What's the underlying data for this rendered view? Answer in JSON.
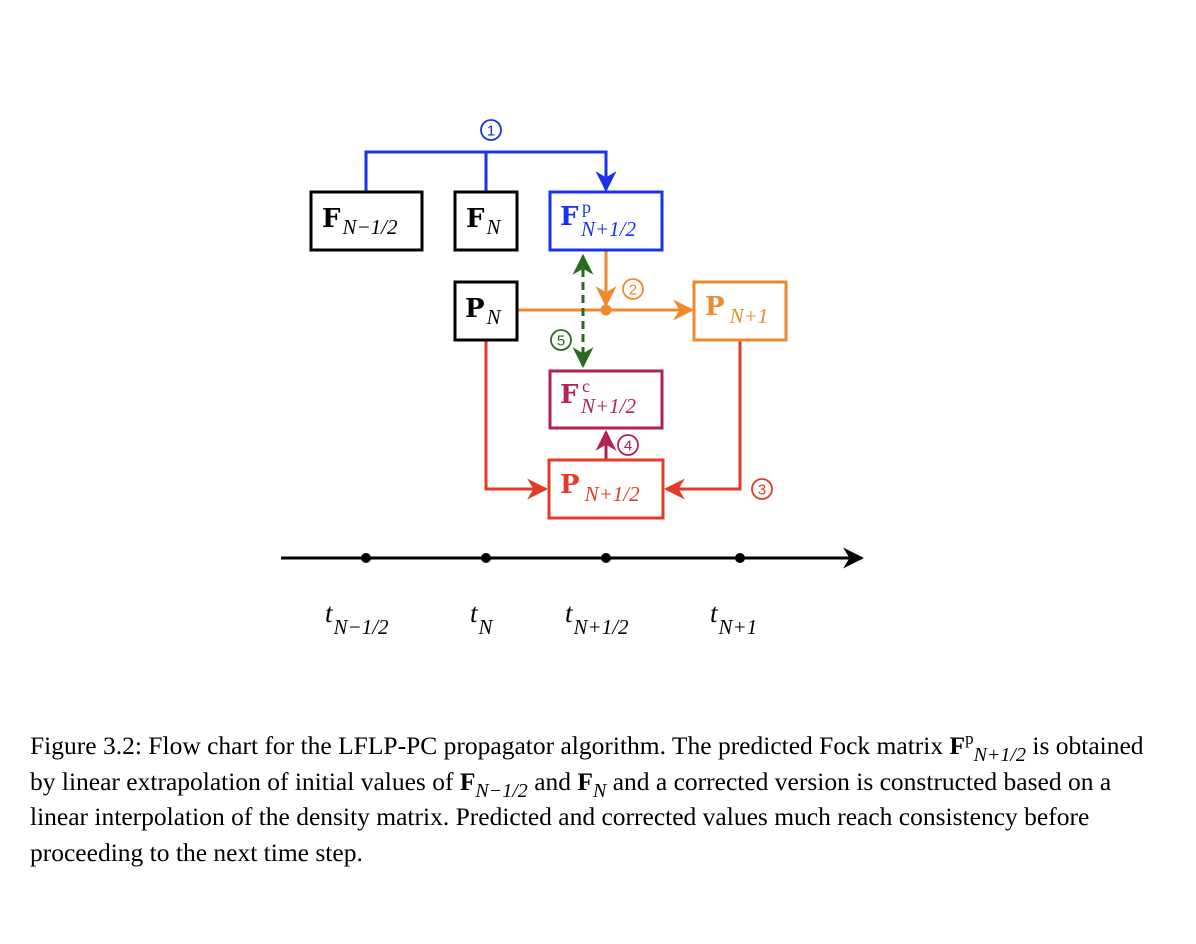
{
  "colors": {
    "black": "#000000",
    "blue": "#1a33e6",
    "orange": "#ee8a2e",
    "red": "#e33a2a",
    "crimson": "#b3234f",
    "green": "#2a6a1d"
  },
  "nodes": {
    "f_prev": {
      "main": "F",
      "sub": "N−1/2",
      "sup": ""
    },
    "f_n": {
      "main": "F",
      "sub": "N",
      "sup": ""
    },
    "f_pred": {
      "main": "F",
      "sub": "N+1/2",
      "sup": "p"
    },
    "p_n": {
      "main": "P",
      "sub": "N",
      "sup": ""
    },
    "p_next": {
      "main": "P",
      "sub": "N+1",
      "sup": ""
    },
    "f_corr": {
      "main": "F",
      "sub": "N+1/2",
      "sup": "c"
    },
    "p_half": {
      "main": "P",
      "sub": "N+1/2",
      "sup": ""
    }
  },
  "steps": {
    "s1": "1",
    "s2": "2",
    "s3": "3",
    "s4": "4",
    "s5": "5"
  },
  "axis": {
    "ticks": [
      {
        "t": "t",
        "sub": "N−1/2"
      },
      {
        "t": "t",
        "sub": "N"
      },
      {
        "t": "t",
        "sub": "N+1/2"
      },
      {
        "t": "t",
        "sub": "N+1"
      }
    ]
  },
  "caption": {
    "label": "Figure 3.2:",
    "part1": " Flow chart for the LFLP-PC propagator algorithm. The predicted Fock matrix ",
    "f1_main": "F",
    "f1_sup": "p",
    "f1_sub": "N+1/2",
    "part2": " is obtained by linear extrapolation of initial values of ",
    "f2_main": "F",
    "f2_sub": "N−1/2",
    "part3": " and ",
    "f3_main": "F",
    "f3_sub": "N",
    "part4": " and a corrected version is constructed based on a linear interpolation of the density matrix. Predicted and corrected values much reach consistency before proceeding to the next time step."
  }
}
